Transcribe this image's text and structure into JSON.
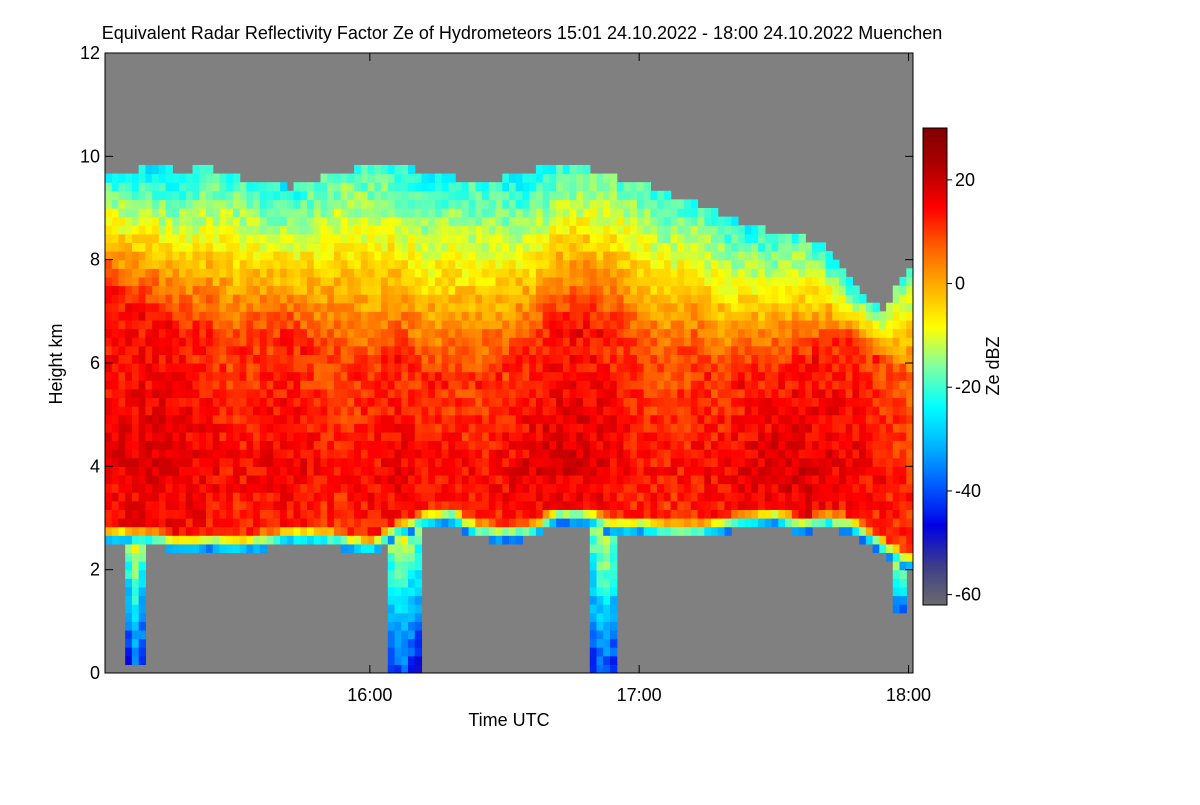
{
  "chart_data": {
    "type": "heatmap",
    "title": "Equivalent Radar Reflectivity Factor Ze of Hydrometeors   15:01 24.10.2022 - 18:00 24.10.2022 Muenchen",
    "xlabel": "Time UTC",
    "ylabel": "Height km",
    "x_range_utc": [
      "15:01",
      "18:01"
    ],
    "xlim_hours": [
      15.0167,
      18.0167
    ],
    "ylim": [
      0,
      12
    ],
    "x_ticks": [
      {
        "hours": 16.0,
        "label": "16:00"
      },
      {
        "hours": 17.0,
        "label": "17:00"
      },
      {
        "hours": 18.0,
        "label": "18:00"
      }
    ],
    "y_ticks": [
      {
        "value": 0,
        "label": "0"
      },
      {
        "value": 2,
        "label": "2"
      },
      {
        "value": 4,
        "label": "4"
      },
      {
        "value": 6,
        "label": "6"
      },
      {
        "value": 8,
        "label": "8"
      },
      {
        "value": 10,
        "label": "10"
      },
      {
        "value": 12,
        "label": "12"
      }
    ],
    "colorbar": {
      "label": "Ze dBZ",
      "range": [
        -62,
        30
      ],
      "ticks": [
        {
          "value": 20,
          "label": "20"
        },
        {
          "value": 0,
          "label": "0"
        },
        {
          "value": -20,
          "label": "-20"
        },
        {
          "value": -40,
          "label": "-40"
        },
        {
          "value": -60,
          "label": "-60"
        }
      ],
      "colors": [
        "#6b6b6b",
        "#3c3c8c",
        "#0000e6",
        "#005aff",
        "#00b4ff",
        "#00ffff",
        "#80ffa0",
        "#ffff00",
        "#ffb000",
        "#ff6000",
        "#ff0000",
        "#b00000",
        "#800000"
      ]
    },
    "background_color": "#808080",
    "cloud_layer": {
      "time_hours": [
        15.02,
        15.1,
        15.2,
        15.3,
        15.4,
        15.5,
        15.6,
        15.7,
        15.8,
        15.9,
        16.0,
        16.1,
        16.2,
        16.3,
        16.4,
        16.5,
        16.6,
        16.7,
        16.8,
        16.9,
        17.0,
        17.1,
        17.2,
        17.3,
        17.4,
        17.5,
        17.6,
        17.7,
        17.8,
        17.9,
        18.0
      ],
      "top_km": [
        9.6,
        9.7,
        9.85,
        9.7,
        9.8,
        9.6,
        9.5,
        9.4,
        9.55,
        9.7,
        9.8,
        9.9,
        9.7,
        9.6,
        9.5,
        9.6,
        9.7,
        9.9,
        9.8,
        9.6,
        9.5,
        9.3,
        9.1,
        8.9,
        8.7,
        8.5,
        8.5,
        8.2,
        7.5,
        7.0,
        7.8
      ],
      "base_km": [
        2.5,
        2.5,
        2.45,
        2.35,
        2.4,
        2.3,
        2.4,
        2.5,
        2.5,
        2.4,
        2.3,
        2.6,
        2.8,
        2.9,
        2.6,
        2.55,
        2.6,
        2.9,
        2.9,
        2.7,
        2.7,
        2.6,
        2.6,
        2.7,
        2.8,
        2.9,
        2.7,
        2.8,
        2.7,
        2.3,
        2.0
      ],
      "core_top_km": [
        7.5,
        7.0,
        6.8,
        6.5,
        6.4,
        6.2,
        6.3,
        6.4,
        6.1,
        5.8,
        5.5,
        6.0,
        5.5,
        5.6,
        5.5,
        5.8,
        6.0,
        6.5,
        6.6,
        6.4,
        6.0,
        5.8,
        6.0,
        5.5,
        5.6,
        5.6,
        5.8,
        6.2,
        6.4,
        6.0,
        5.5
      ],
      "core_dbz": [
        14,
        15,
        16,
        15,
        14,
        12,
        13,
        14,
        12,
        11,
        13,
        14,
        13,
        12,
        12,
        13,
        15,
        16,
        16,
        14,
        12,
        11,
        12,
        13,
        15,
        16,
        16,
        15,
        14,
        12,
        10
      ],
      "top_dbz": [
        -22,
        -24,
        -26,
        -25,
        -22,
        -20,
        -22,
        -24,
        -20,
        -18,
        -20,
        -22,
        -24,
        -22,
        -20,
        -24,
        -26,
        -22,
        -20,
        -18,
        -20,
        -22,
        -20,
        -22,
        -24,
        -22,
        -20,
        -24,
        -26,
        -20,
        -18
      ]
    },
    "precipitation_shafts": [
      {
        "center_hours": 15.13,
        "width_hours": 0.06,
        "bottom_km": 0.1
      },
      {
        "center_hours": 16.12,
        "width_hours": 0.12,
        "bottom_km": 0.05
      },
      {
        "center_hours": 16.87,
        "width_hours": 0.11,
        "bottom_km": 0.05
      },
      {
        "center_hours": 17.97,
        "width_hours": 0.06,
        "bottom_km": 1.1
      }
    ]
  }
}
